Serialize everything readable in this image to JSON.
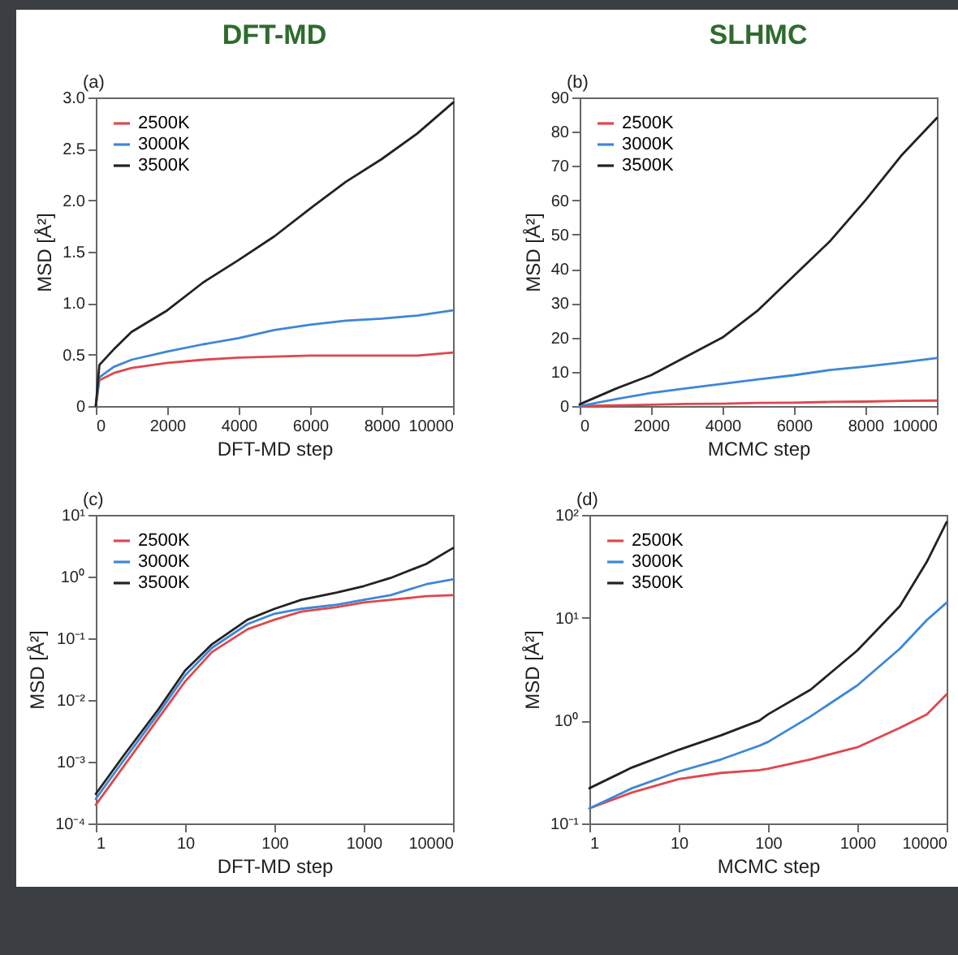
{
  "chart_data": [
    {
      "type": "line",
      "title": "DFT-MD",
      "annotations": [
        "(a)"
      ],
      "xlabel": "DFT-MD step",
      "ylabel": "MSD [Å²]",
      "xlim": [
        0,
        10000
      ],
      "xticks": [
        0,
        2000,
        4000,
        6000,
        8000,
        10000
      ],
      "ylim": [
        0,
        3
      ],
      "yticks": [
        0,
        0.5,
        {
          "value": 1,
          "label": "1.0"
        },
        1.5,
        {
          "value": 2,
          "label": "2.0"
        },
        2.5,
        {
          "value": 3,
          "label": "3.0"
        }
      ],
      "legend": "top left",
      "x": [
        0,
        100,
        500,
        1000,
        2000,
        3000,
        4000,
        5000,
        6000,
        7000,
        8000,
        9000,
        10000
      ],
      "series": [
        {
          "name": "2500K",
          "color": "#e0474c",
          "values": [
            0,
            0.25,
            0.32,
            0.37,
            0.42,
            0.45,
            0.47,
            0.48,
            0.49,
            0.49,
            0.49,
            0.49,
            0.52
          ]
        },
        {
          "name": "3000K",
          "color": "#3d87d6",
          "values": [
            0,
            0.28,
            0.38,
            0.45,
            0.53,
            0.6,
            0.66,
            0.74,
            0.79,
            0.83,
            0.85,
            0.88,
            0.93
          ]
        },
        {
          "name": "3500K",
          "color": "#222222",
          "values": [
            0,
            0.4,
            0.55,
            0.72,
            0.93,
            1.2,
            1.42,
            1.65,
            1.92,
            2.18,
            2.4,
            2.65,
            2.95
          ]
        }
      ]
    },
    {
      "type": "line",
      "title": "SLHMC",
      "annotations": [
        "(b)"
      ],
      "xlabel": "MCMC step",
      "ylabel": "MSD [Å²]",
      "xlim": [
        0,
        10000
      ],
      "xticks": [
        0,
        2000,
        4000,
        6000,
        8000,
        10000
      ],
      "ylim": [
        0,
        90
      ],
      "yticks": [
        0,
        10,
        20,
        30,
        40,
        50,
        60,
        70,
        80,
        90
      ],
      "legend": "top left",
      "x": [
        0,
        1000,
        2000,
        3000,
        4000,
        5000,
        6000,
        7000,
        8000,
        9000,
        10000
      ],
      "series": [
        {
          "name": "2500K",
          "color": "#e0474c",
          "values": [
            0,
            0.2,
            0.4,
            0.6,
            0.7,
            0.9,
            1.0,
            1.2,
            1.3,
            1.5,
            1.6
          ]
        },
        {
          "name": "3000K",
          "color": "#3d87d6",
          "values": [
            0,
            2,
            3.8,
            5.2,
            6.5,
            7.8,
            9,
            10.5,
            11.5,
            12.7,
            14
          ]
        },
        {
          "name": "3500K",
          "color": "#222222",
          "values": [
            0.5,
            5,
            9,
            14.5,
            20,
            28,
            38,
            48,
            60,
            73,
            84
          ]
        }
      ]
    },
    {
      "type": "line",
      "annotations": [
        "(c)"
      ],
      "xlabel": "DFT-MD step",
      "ylabel": "MSD [Å²]",
      "log": "xy",
      "xlim": [
        1,
        10000
      ],
      "xticks": [
        1,
        10,
        100,
        1000,
        10000
      ],
      "ylim": [
        0.0001,
        10
      ],
      "yticks": [
        {
          "value": 0.0001,
          "label": "10⁻⁴"
        },
        {
          "value": 0.001,
          "label": "10⁻³"
        },
        {
          "value": 0.01,
          "label": "10⁻²"
        },
        {
          "value": 0.1,
          "label": "10⁻¹"
        },
        {
          "value": 1,
          "label": "10⁰"
        },
        {
          "value": 10,
          "label": "10¹"
        }
      ],
      "legend": "top left",
      "x": [
        1,
        2,
        5,
        10,
        20,
        50,
        100,
        200,
        500,
        1000,
        2000,
        5000,
        10000
      ],
      "series": [
        {
          "name": "2500K",
          "color": "#e0474c",
          "values": [
            0.0002,
            0.0008,
            0.005,
            0.02,
            0.06,
            0.14,
            0.2,
            0.27,
            0.32,
            0.38,
            0.42,
            0.48,
            0.5
          ]
        },
        {
          "name": "3000K",
          "color": "#3d87d6",
          "values": [
            0.00025,
            0.001,
            0.006,
            0.025,
            0.07,
            0.17,
            0.25,
            0.3,
            0.35,
            0.42,
            0.5,
            0.75,
            0.9
          ]
        },
        {
          "name": "3500K",
          "color": "#222222",
          "values": [
            0.0003,
            0.0012,
            0.007,
            0.03,
            0.08,
            0.2,
            0.3,
            0.42,
            0.55,
            0.7,
            0.95,
            1.6,
            2.9
          ]
        }
      ]
    },
    {
      "type": "line",
      "annotations": [
        "(d)"
      ],
      "xlabel": "MCMC step",
      "ylabel": "MSD [Å²]",
      "log": "xy",
      "xlim": [
        1,
        10000
      ],
      "xticks": [
        1,
        10,
        100,
        1000,
        10000
      ],
      "ylim": [
        0.1,
        100
      ],
      "yticks": [
        {
          "value": 0.1,
          "label": "10⁻¹"
        },
        {
          "value": 1,
          "label": "10⁰"
        },
        {
          "value": 10,
          "label": "10¹"
        },
        {
          "value": 100,
          "label": "10²"
        }
      ],
      "legend": "top left",
      "x": [
        1,
        3,
        10,
        30,
        80,
        100,
        300,
        1000,
        3000,
        6000,
        10000
      ],
      "series": [
        {
          "name": "2500K",
          "color": "#e0474c",
          "values": [
            0.14,
            0.2,
            0.27,
            0.31,
            0.33,
            0.34,
            0.42,
            0.55,
            0.85,
            1.15,
            1.8
          ]
        },
        {
          "name": "3000K",
          "color": "#3d87d6",
          "values": [
            0.14,
            0.22,
            0.32,
            0.42,
            0.57,
            0.62,
            1.1,
            2.2,
            5,
            9.5,
            14
          ]
        },
        {
          "name": "3500K",
          "color": "#222222",
          "values": [
            0.22,
            0.35,
            0.52,
            0.72,
            1.0,
            1.15,
            2,
            4.8,
            13,
            35,
            85
          ]
        }
      ]
    }
  ]
}
